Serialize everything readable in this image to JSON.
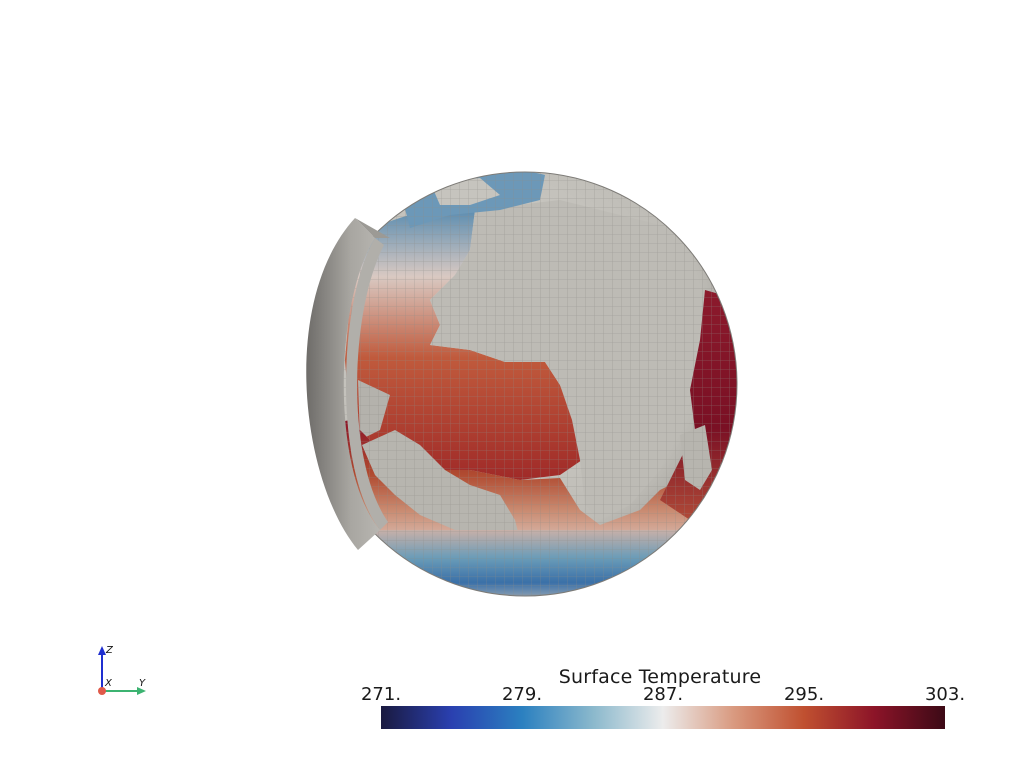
{
  "scene": {
    "globe": {
      "sphere_colors": [
        "#d0cec8",
        "#b9b7b1",
        "#8f8d88"
      ],
      "gridline_color": "#9a9893",
      "land_color": "#b6b4ae"
    },
    "clip_wedge": {
      "face_color": "#a9a7a2",
      "shadow_color": "#6e6c69"
    }
  },
  "axes_widget": {
    "z_label": "Z",
    "x_label": "X",
    "y_label": "Y",
    "z_color": "#1f2fd0",
    "y_color": "#3cb371",
    "x_color": "#e05a4a"
  },
  "colorbar": {
    "title": "Surface Temperature",
    "ticks": [
      {
        "value": 271,
        "label": "271."
      },
      {
        "value": 279,
        "label": "279."
      },
      {
        "value": 287,
        "label": "287."
      },
      {
        "value": 295,
        "label": "295."
      },
      {
        "value": 303,
        "label": "303."
      }
    ],
    "range": [
      271,
      303
    ],
    "colormap_stops": [
      {
        "value": 271,
        "color": "#1a1a40"
      },
      {
        "value": 275,
        "color": "#2a40b0"
      },
      {
        "value": 279,
        "color": "#2b80c0"
      },
      {
        "value": 283,
        "color": "#8ab8cc"
      },
      {
        "value": 287,
        "color": "#ececec"
      },
      {
        "value": 291,
        "color": "#d99a80"
      },
      {
        "value": 295,
        "color": "#c05030"
      },
      {
        "value": 299,
        "color": "#8c1428"
      },
      {
        "value": 303,
        "color": "#3c0a16"
      }
    ]
  }
}
